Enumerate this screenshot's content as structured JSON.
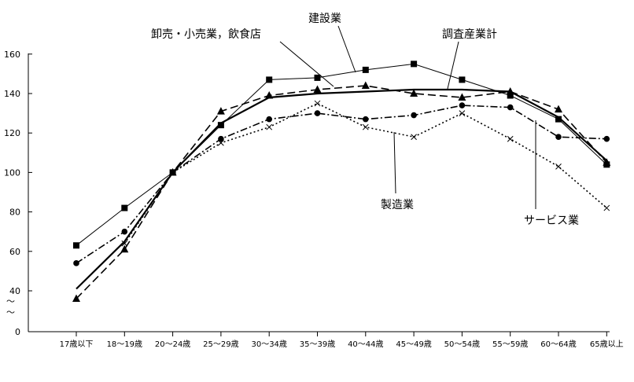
{
  "chart_data": {
    "type": "line",
    "categories": [
      "17歳以下",
      "18～19歳",
      "20～24歳",
      "25～29歳",
      "30～34歳",
      "35～39歳",
      "40～44歳",
      "45～49歳",
      "50～54歳",
      "55～59歳",
      "60～64歳",
      "65歳以上"
    ],
    "y_axis": {
      "ticks": [
        0,
        40,
        60,
        80,
        100,
        120,
        140,
        160
      ],
      "tick_labels": [
        "0",
        "40",
        "60",
        "80",
        "100",
        "120",
        "140",
        "160"
      ],
      "break_symbol": "～"
    },
    "grid": false,
    "series": [
      {
        "name": "建設業",
        "style": "solid-thin",
        "marker": "square",
        "values": [
          63,
          82,
          100,
          124,
          147,
          148,
          152,
          155,
          147,
          139,
          127,
          104
        ]
      },
      {
        "name": "卸売・小売業，飲食店",
        "style": "dashed",
        "marker": "triangle",
        "values": [
          36,
          61,
          100,
          131,
          139,
          142,
          144,
          140,
          138,
          141,
          132,
          105
        ]
      },
      {
        "name": "調査産業計",
        "style": "solid-bold",
        "marker": "none",
        "values": [
          41,
          65,
          100,
          125,
          138,
          140,
          141,
          142,
          142,
          141,
          128,
          106
        ]
      },
      {
        "name": "製造業",
        "style": "dashdot",
        "marker": "circle",
        "values": [
          54,
          70,
          100,
          117,
          127,
          130,
          127,
          129,
          134,
          133,
          118,
          117
        ]
      },
      {
        "name": "サービス業",
        "style": "dotted",
        "marker": "x",
        "values": [
          null,
          64,
          100,
          115,
          123,
          135,
          123,
          118,
          130,
          117,
          103,
          82
        ]
      }
    ]
  }
}
